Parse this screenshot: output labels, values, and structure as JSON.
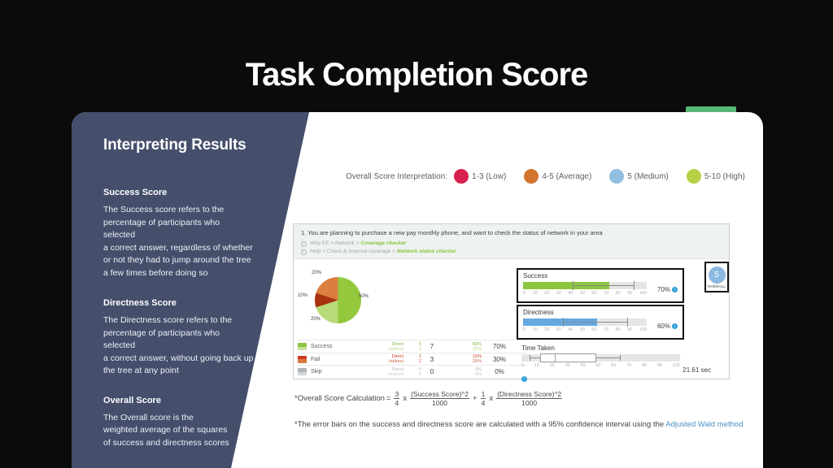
{
  "slide_title": "Task Completion Score",
  "colors": {
    "background": "#0b0b0b",
    "sidebar": "#454f6c",
    "tab_green": "#57b877"
  },
  "icons": {
    "check": "✓",
    "info": "i"
  },
  "sidebar": {
    "title": "Interpreting Results",
    "sections": [
      {
        "heading": "Success Score",
        "body": "The Success score refers to the\npercentage of participants who selected\na correct answer, regardless of whether\nor not they had to jump around the tree\na few times before doing so"
      },
      {
        "heading": "Directness Score",
        "body": "The Directness score refers to the\npercentage of participants who selected\na correct answer, without going back up\nthe tree at any point"
      },
      {
        "heading": "Overall Score",
        "body": "The Overall score is the\nweighted average of the squares\nof success and directness scores"
      }
    ]
  },
  "legend": {
    "label": "Overall Score Interpretation:",
    "items": [
      {
        "label": "1-3 (Low)",
        "color": "#d6224c"
      },
      {
        "label": "4-5 (Average)",
        "color": "#d2752f"
      },
      {
        "label": "5 (Medium)",
        "color": "#92bfdf"
      },
      {
        "label": "5-10 (High)",
        "color": "#b6d145"
      }
    ]
  },
  "screenshot": {
    "question": "1. You are planning to purchase a new pay monthly phone, and want to check the status of network in your area",
    "paths": [
      {
        "prefix": "Why EE > Network >",
        "highlight": "Coverage checker"
      },
      {
        "prefix": "Help > Check & Improve coverage >",
        "highlight": "Network status checker"
      }
    ],
    "scale_ticks": [
      "0",
      "10",
      "20",
      "30",
      "40",
      "50",
      "60",
      "70",
      "80",
      "90",
      "100"
    ],
    "pie": {
      "slices": [
        {
          "label": "Success Direct",
          "value": 50,
          "display": "50%",
          "color": "#94c83d"
        },
        {
          "label": "Success Indirect",
          "value": 20,
          "display": "20%",
          "color": "#b8da79"
        },
        {
          "label": "Fail Direct",
          "value": 10,
          "display": "10%",
          "color": "#a93110"
        },
        {
          "label": "Fail Indirect",
          "value": 20,
          "display": "20%",
          "color": "#dc7e3e"
        }
      ]
    },
    "table": {
      "rows": [
        {
          "label": "Success",
          "direct_label": "Direct",
          "indirect_label": "Indirect",
          "direct": "5",
          "indirect": "2",
          "total": "7",
          "direct_pct": "50%",
          "indirect_pct": "20%",
          "total_pct": "70%",
          "swatch_top": "#8cc63e",
          "swatch_bottom": "#c9e09a",
          "direct_color": "#7ab648",
          "indirect_color": "#b9d98c"
        },
        {
          "label": "Fail",
          "direct_label": "Direct",
          "indirect_label": "Indirect",
          "direct": "1",
          "indirect": "2",
          "total": "3",
          "direct_pct": "10%",
          "indirect_pct": "20%",
          "total_pct": "30%",
          "swatch_top": "#cf3a24",
          "swatch_bottom": "#d9773f",
          "direct_color": "#cc4125",
          "indirect_color": "#d0604a"
        },
        {
          "label": "Skip",
          "direct_label": "Direct",
          "indirect_label": "Indirect",
          "direct": "0",
          "indirect": "0",
          "total": "0",
          "direct_pct": "0%",
          "indirect_pct": "0%",
          "total_pct": "0%",
          "swatch_top": "#aeb4b6",
          "swatch_bottom": "#d2d6d7",
          "direct_color": "#b5b8b8",
          "indirect_color": "#c5c8c8"
        }
      ]
    },
    "success_bar": {
      "title": "Success",
      "value": 70,
      "display": "70%",
      "error_low": 40,
      "error_high": 90,
      "fill": "#8cc63e"
    },
    "directness_bar": {
      "title": "Directness",
      "value": 60,
      "display": "60%",
      "error_low": 32,
      "error_high": 85,
      "fill": "#64a9e2"
    },
    "time_plot": {
      "title": "Time Taken",
      "display": "21.61 sec",
      "min": 5,
      "q1": 12,
      "median": 21,
      "q3": 47,
      "max": 62
    },
    "overall_badge": {
      "value": "5",
      "label": "OVERALL",
      "color": "#8bb9e2"
    }
  },
  "formula": {
    "label": "*Overall Score Calculation",
    "equals": "=",
    "t1_num": "3",
    "t1_den": "4",
    "times1": "x",
    "t2_num": "(Success Score)^2",
    "t2_den": "1000",
    "plus": "+",
    "t3_num": "1",
    "t3_den": "4",
    "times2": "x",
    "t4_num": "(Directness Score)^2",
    "t4_den": "1000"
  },
  "footnote": {
    "text": "*The error bars on the success  and directness score are calculated with a 95% confidence interval using the",
    "link": "Adjusted Wald method"
  },
  "chart_data": [
    {
      "type": "pie",
      "title": "Answer distribution",
      "labels": [
        "Success Direct",
        "Success Indirect",
        "Fail Direct",
        "Fail Indirect"
      ],
      "values": [
        50,
        20,
        10,
        20
      ]
    },
    {
      "type": "bar",
      "title": "Success",
      "categories": [
        "Success"
      ],
      "values": [
        70
      ],
      "error_bars": [
        [
          40,
          90
        ]
      ],
      "xlim": [
        0,
        100
      ]
    },
    {
      "type": "bar",
      "title": "Directness",
      "categories": [
        "Directness"
      ],
      "values": [
        60
      ],
      "error_bars": [
        [
          32,
          85
        ]
      ],
      "xlim": [
        0,
        100
      ]
    },
    {
      "type": "boxplot",
      "title": "Time Taken",
      "min": 5,
      "q1": 12,
      "median": 21,
      "q3": 47,
      "max": 62,
      "value_label": "21.61 sec",
      "xlim": [
        0,
        100
      ]
    }
  ]
}
